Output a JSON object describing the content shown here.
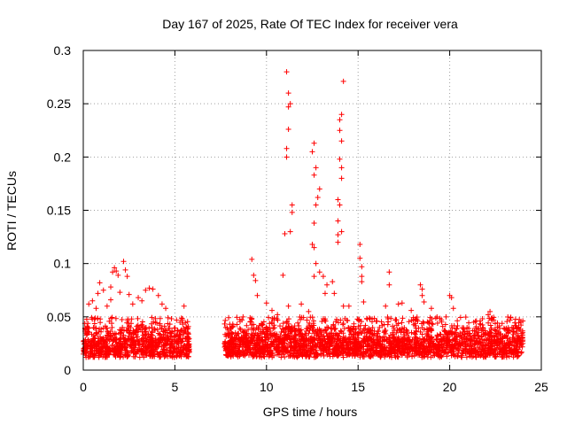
{
  "chart_data": {
    "type": "scatter",
    "title": "Day 167 of 2025, Rate Of TEC Index for receiver vera",
    "xlabel": "GPS time / hours",
    "ylabel": "ROTI / TECUs",
    "xlim": [
      0,
      25
    ],
    "ylim": [
      0,
      0.3
    ],
    "x_ticks": [
      0,
      5,
      10,
      15,
      20,
      25
    ],
    "x_tick_labels": [
      "0",
      "5",
      "10",
      "15",
      "20",
      "25"
    ],
    "y_ticks": [
      0,
      0.05,
      0.1,
      0.15,
      0.2,
      0.25,
      0.3
    ],
    "y_tick_labels": [
      "0",
      "0.05",
      "0.1",
      "0.15",
      "0.2",
      "0.25",
      "0.3"
    ],
    "grid": true,
    "marker": "+",
    "marker_color": "#ff0000",
    "series": [
      {
        "name": "ROTI",
        "note": "dense background band (~0.01–0.04 TECU) spanning 0–5.8 h and 7.7–24 h, plus the elevated points listed",
        "background_segments": [
          [
            0.0,
            5.8
          ],
          [
            7.7,
            24.0
          ]
        ],
        "points": [
          [
            0.3,
            0.062
          ],
          [
            0.5,
            0.065
          ],
          [
            0.7,
            0.058
          ],
          [
            0.8,
            0.072
          ],
          [
            0.9,
            0.082
          ],
          [
            1.1,
            0.075
          ],
          [
            1.3,
            0.06
          ],
          [
            1.5,
            0.078
          ],
          [
            1.5,
            0.066
          ],
          [
            1.6,
            0.092
          ],
          [
            1.7,
            0.096
          ],
          [
            1.8,
            0.093
          ],
          [
            1.9,
            0.089
          ],
          [
            2.0,
            0.073
          ],
          [
            2.2,
            0.102
          ],
          [
            2.3,
            0.094
          ],
          [
            2.4,
            0.088
          ],
          [
            2.5,
            0.071
          ],
          [
            2.7,
            0.062
          ],
          [
            3.0,
            0.068
          ],
          [
            3.2,
            0.065
          ],
          [
            3.4,
            0.075
          ],
          [
            3.6,
            0.077
          ],
          [
            3.8,
            0.076
          ],
          [
            4.1,
            0.07
          ],
          [
            4.3,
            0.062
          ],
          [
            4.5,
            0.058
          ],
          [
            5.5,
            0.06
          ],
          [
            9.2,
            0.104
          ],
          [
            9.3,
            0.089
          ],
          [
            9.4,
            0.084
          ],
          [
            9.5,
            0.07
          ],
          [
            10.0,
            0.063
          ],
          [
            10.3,
            0.056
          ],
          [
            10.6,
            0.052
          ],
          [
            10.9,
            0.089
          ],
          [
            11.0,
            0.128
          ],
          [
            11.1,
            0.28
          ],
          [
            11.2,
            0.26
          ],
          [
            11.3,
            0.25
          ],
          [
            11.2,
            0.247
          ],
          [
            11.2,
            0.226
          ],
          [
            11.1,
            0.208
          ],
          [
            11.1,
            0.2
          ],
          [
            11.4,
            0.155
          ],
          [
            11.4,
            0.148
          ],
          [
            11.3,
            0.13
          ],
          [
            11.2,
            0.06
          ],
          [
            11.9,
            0.062
          ],
          [
            12.3,
            0.055
          ],
          [
            12.6,
            0.213
          ],
          [
            12.5,
            0.205
          ],
          [
            12.7,
            0.19
          ],
          [
            12.6,
            0.183
          ],
          [
            12.9,
            0.17
          ],
          [
            12.8,
            0.162
          ],
          [
            12.7,
            0.155
          ],
          [
            12.6,
            0.138
          ],
          [
            12.5,
            0.118
          ],
          [
            12.6,
            0.115
          ],
          [
            12.7,
            0.1
          ],
          [
            12.6,
            0.088
          ],
          [
            12.9,
            0.092
          ],
          [
            13.1,
            0.088
          ],
          [
            13.3,
            0.08
          ],
          [
            13.2,
            0.072
          ],
          [
            13.6,
            0.083
          ],
          [
            13.7,
            0.072
          ],
          [
            13.9,
            0.127
          ],
          [
            13.9,
            0.14
          ],
          [
            13.9,
            0.16
          ],
          [
            14.0,
            0.235
          ],
          [
            14.0,
            0.225
          ],
          [
            14.1,
            0.215
          ],
          [
            14.0,
            0.198
          ],
          [
            14.1,
            0.19
          ],
          [
            14.1,
            0.18
          ],
          [
            14.0,
            0.155
          ],
          [
            14.1,
            0.13
          ],
          [
            14.2,
            0.271
          ],
          [
            14.1,
            0.24
          ],
          [
            13.9,
            0.12
          ],
          [
            14.2,
            0.06
          ],
          [
            14.5,
            0.06
          ],
          [
            15.1,
            0.118
          ],
          [
            15.1,
            0.105
          ],
          [
            15.2,
            0.097
          ],
          [
            15.2,
            0.088
          ],
          [
            15.2,
            0.083
          ],
          [
            15.3,
            0.064
          ],
          [
            16.7,
            0.092
          ],
          [
            16.7,
            0.08
          ],
          [
            16.5,
            0.06
          ],
          [
            17.2,
            0.062
          ],
          [
            17.4,
            0.063
          ],
          [
            17.9,
            0.056
          ],
          [
            18.4,
            0.08
          ],
          [
            18.5,
            0.076
          ],
          [
            18.5,
            0.07
          ],
          [
            18.6,
            0.064
          ],
          [
            19.0,
            0.058
          ],
          [
            20.0,
            0.07
          ],
          [
            20.1,
            0.068
          ],
          [
            20.2,
            0.058
          ],
          [
            22.1,
            0.052
          ],
          [
            22.2,
            0.055
          ],
          [
            22.3,
            0.048
          ],
          [
            23.4,
            0.04
          ]
        ]
      }
    ]
  }
}
